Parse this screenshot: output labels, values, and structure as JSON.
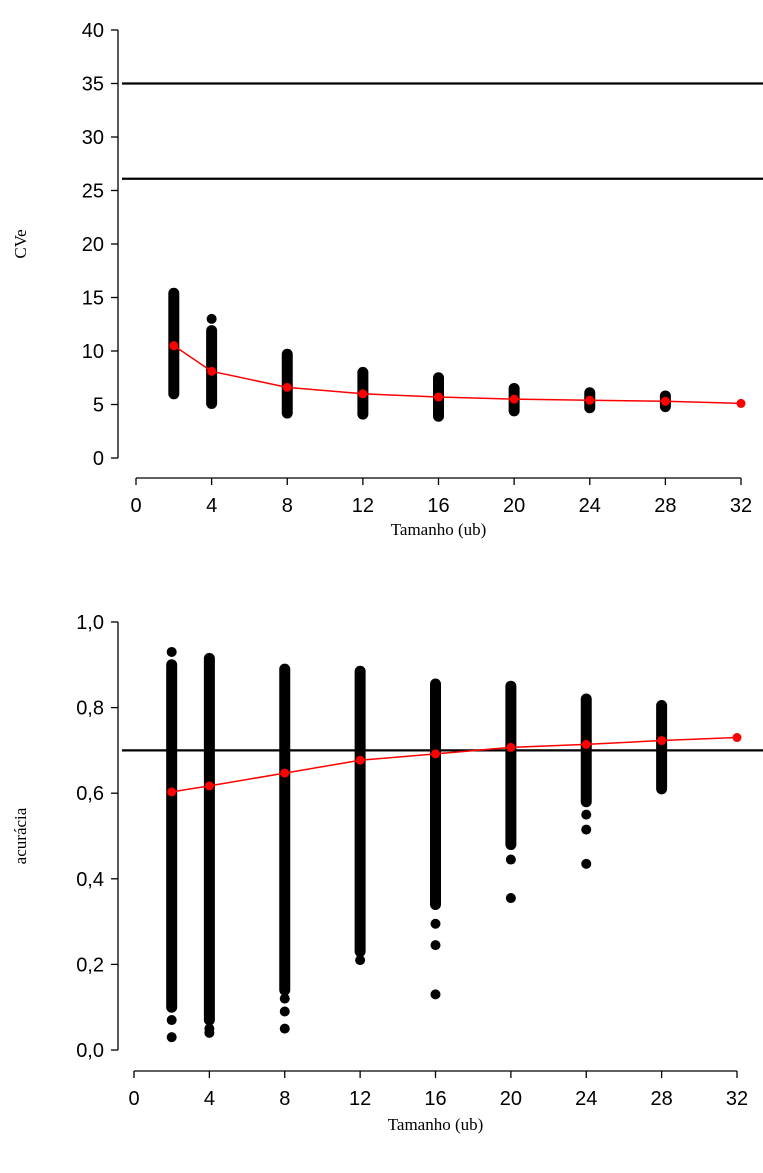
{
  "chart_data": [
    {
      "type": "scatter",
      "xlabel": "Tamanho (ub)",
      "ylabel": "CVe",
      "xlim": [
        0,
        32
      ],
      "ylim": [
        0,
        40
      ],
      "xticks": [
        "0",
        "4",
        "8",
        "12",
        "16",
        "20",
        "24",
        "28",
        "32"
      ],
      "yticks": [
        "0",
        "5",
        "10",
        "15",
        "20",
        "25",
        "30",
        "35",
        "40"
      ],
      "hlines": [
        35,
        26.1
      ],
      "point_color": "#000000",
      "mean_color": "#ff0000",
      "series": [
        {
          "x": [
            2,
            4,
            8,
            12,
            16,
            20,
            24,
            28
          ],
          "ranges": [
            [
              6.0,
              15.4
            ],
            [
              5.1,
              11.9
            ],
            [
              4.2,
              9.7
            ],
            [
              4.1,
              8.0
            ],
            [
              3.9,
              7.5
            ],
            [
              4.4,
              6.5
            ],
            [
              4.7,
              6.1
            ],
            [
              4.8,
              5.8
            ]
          ],
          "outliers": [
            [
              4,
              13.0
            ]
          ]
        },
        {
          "x": [
            2,
            4,
            8,
            12,
            16,
            20,
            24,
            28,
            32
          ],
          "values": [
            10.5,
            8.1,
            6.6,
            6.0,
            5.7,
            5.5,
            5.4,
            5.3,
            5.1
          ]
        }
      ]
    },
    {
      "type": "scatter",
      "xlabel": "Tamanho (ub)",
      "ylabel": "acurácia",
      "xlim": [
        0,
        32
      ],
      "ylim": [
        0,
        1
      ],
      "xticks": [
        "0",
        "4",
        "8",
        "12",
        "16",
        "20",
        "24",
        "28",
        "32"
      ],
      "yticks": [
        "0,0",
        "0,2",
        "0,4",
        "0,6",
        "0,8",
        "1,0"
      ],
      "hlines": [
        0.7
      ],
      "point_color": "#000000",
      "mean_color": "#ff0000",
      "series": [
        {
          "x": [
            2,
            4,
            8,
            12,
            16,
            20,
            24,
            28
          ],
          "ranges": [
            [
              0.1,
              0.9
            ],
            [
              0.07,
              0.915
            ],
            [
              0.14,
              0.89
            ],
            [
              0.23,
              0.885
            ],
            [
              0.34,
              0.855
            ],
            [
              0.48,
              0.85
            ],
            [
              0.58,
              0.82
            ],
            [
              0.61,
              0.805
            ]
          ],
          "outliers": [
            [
              2,
              0.03
            ],
            [
              2,
              0.07
            ],
            [
              2,
              0.93
            ],
            [
              4,
              0.04
            ],
            [
              4,
              0.05
            ],
            [
              8,
              0.05
            ],
            [
              8,
              0.09
            ],
            [
              8,
              0.12
            ],
            [
              12,
              0.21
            ],
            [
              16,
              0.13
            ],
            [
              16,
              0.245
            ],
            [
              16,
              0.295
            ],
            [
              20,
              0.355
            ],
            [
              20,
              0.445
            ],
            [
              24,
              0.435
            ],
            [
              24,
              0.515
            ],
            [
              24,
              0.55
            ]
          ]
        },
        {
          "x": [
            2,
            4,
            8,
            12,
            16,
            20,
            24,
            28,
            32
          ],
          "values": [
            0.603,
            0.617,
            0.647,
            0.677,
            0.692,
            0.707,
            0.714,
            0.723,
            0.73
          ]
        }
      ]
    }
  ]
}
